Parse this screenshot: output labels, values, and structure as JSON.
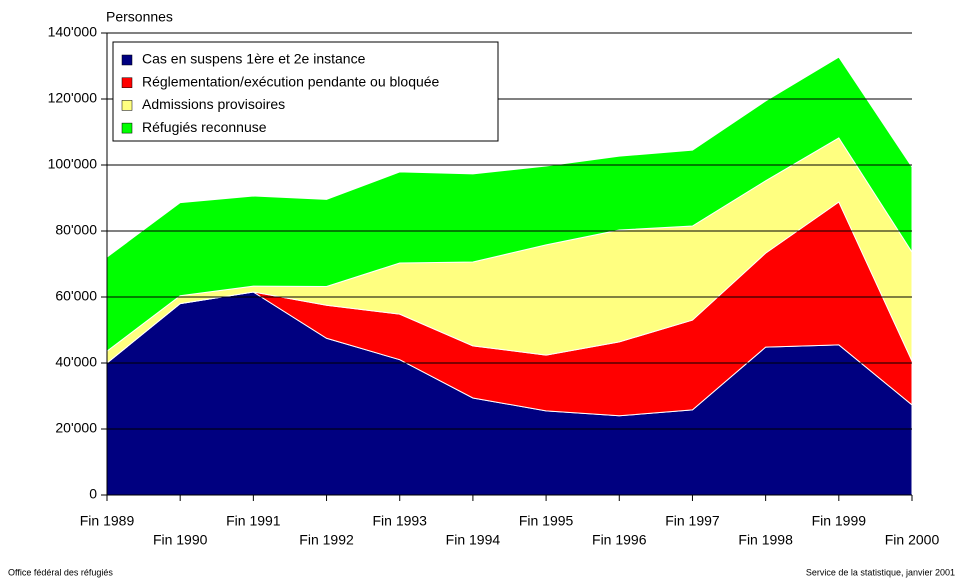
{
  "chart_data": {
    "type": "stacked_area",
    "y_label": "Personnes",
    "categories": [
      "Fin 1989",
      "Fin 1990",
      "Fin 1991",
      "Fin 1992",
      "Fin 1993",
      "Fin 1994",
      "Fin 1995",
      "Fin 1996",
      "Fin 1997",
      "Fin 1998",
      "Fin 1999",
      "Fin 2000"
    ],
    "series": [
      {
        "name": "Cas en suspens 1ère et 2e instance",
        "color": "#000080",
        "values": [
          40000,
          58000,
          61500,
          47500,
          41000,
          29400,
          25500,
          24000,
          25800,
          44800,
          45500,
          27300
        ]
      },
      {
        "name": "Réglementation/exécution pendante ou bloquée",
        "color": "#ff0000",
        "values": [
          0,
          0,
          0,
          10000,
          13800,
          15800,
          16900,
          22400,
          27200,
          28500,
          43300,
          13300
        ]
      },
      {
        "name": "Admissions provisoires",
        "color": "#ffff80",
        "values": [
          3600,
          2400,
          1800,
          5700,
          15500,
          25400,
          33400,
          33900,
          28500,
          21900,
          19400,
          33000
        ]
      },
      {
        "name": "Réfugiés reconnuse",
        "color": "#00ff00",
        "values": [
          28500,
          28200,
          27300,
          26400,
          27600,
          26700,
          23900,
          22400,
          23000,
          24200,
          24500,
          25800
        ]
      }
    ],
    "ylim": [
      0,
      140000
    ],
    "yticks": [
      0,
      {
        "value": 20000,
        "label": "20'000"
      },
      {
        "value": 40000,
        "label": "40'000"
      },
      {
        "value": 60000,
        "label": "60'000"
      },
      {
        "value": 80000,
        "label": "80'000"
      },
      {
        "value": 100000,
        "label": "100'000"
      },
      {
        "value": 120000,
        "label": "120'000"
      },
      {
        "value": 140000,
        "label": "140'000"
      }
    ],
    "grid": true,
    "legend": "top-left",
    "footer_left": "Office fédéral des réfugiés",
    "footer_right": "Service de la statistique, janvier 2001"
  }
}
